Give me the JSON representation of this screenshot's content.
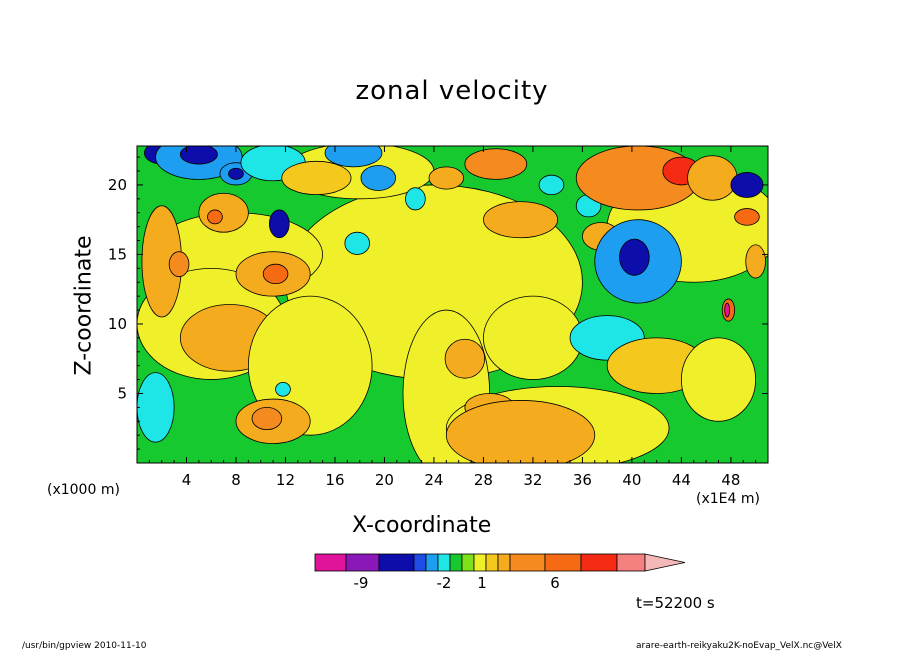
{
  "chart_data": {
    "type": "heatmap",
    "title": "zonal velocity",
    "xlabel": "X-coordinate",
    "ylabel": "Z-coordinate",
    "x_unit_left": "(x1000 m)",
    "x_unit_right": "(x1E4 m)",
    "xlim": [
      0,
      51
    ],
    "ylim": [
      0,
      22.8
    ],
    "x_ticks": [
      4,
      8,
      12,
      16,
      20,
      24,
      28,
      32,
      36,
      40,
      44,
      48
    ],
    "y_ticks": [
      5,
      10,
      15,
      20
    ],
    "colorbar": {
      "colors": [
        "#e0139b",
        "#8a17b8",
        "#0d0dab",
        "#1e4de6",
        "#1e9ef0",
        "#1ee6e6",
        "#16c92f",
        "#7fe11a",
        "#f0f02a",
        "#f5c81e",
        "#f5ab1e",
        "#f58a1e",
        "#f56a12",
        "#f52a12",
        "#f58080",
        "#f5b8b8"
      ],
      "labels": [
        {
          "text": "-9",
          "index": 2
        },
        {
          "text": "-2",
          "index": 7
        },
        {
          "text": "1",
          "index": 9
        },
        {
          "text": "6",
          "index": 13
        }
      ]
    },
    "blobs": [
      {
        "x": 2,
        "y": 22.3,
        "rx": 1.4,
        "ry": 0.8,
        "level": -5
      },
      {
        "x": 5,
        "y": 22.0,
        "rx": 3.5,
        "ry": 1.6,
        "level": -3
      },
      {
        "x": 5,
        "y": 22.2,
        "rx": 1.5,
        "ry": 0.7,
        "level": -6
      },
      {
        "x": 8,
        "y": 20.8,
        "rx": 1.3,
        "ry": 0.8,
        "level": -3
      },
      {
        "x": 8,
        "y": 20.8,
        "rx": 0.6,
        "ry": 0.4,
        "level": -6
      },
      {
        "x": 11,
        "y": 21.6,
        "rx": 2.6,
        "ry": 1.3,
        "level": -2
      },
      {
        "x": 11.5,
        "y": 17.2,
        "rx": 0.8,
        "ry": 1.0,
        "level": -5
      },
      {
        "x": 7,
        "y": 18.0,
        "rx": 2.0,
        "ry": 1.4,
        "level": 3
      },
      {
        "x": 6.3,
        "y": 17.7,
        "rx": 0.6,
        "ry": 0.5,
        "level": 6
      },
      {
        "x": 14.5,
        "y": 20.5,
        "rx": 2.8,
        "ry": 1.2,
        "level": 2
      },
      {
        "x": 17.5,
        "y": 22.3,
        "rx": 2.3,
        "ry": 1.0,
        "level": -3
      },
      {
        "x": 19.5,
        "y": 20.5,
        "rx": 1.4,
        "ry": 0.9,
        "level": -3
      },
      {
        "x": 17.8,
        "y": 15.8,
        "rx": 1.0,
        "ry": 0.8,
        "level": -2
      },
      {
        "x": 22.5,
        "y": 19.0,
        "rx": 0.8,
        "ry": 0.8,
        "level": -2
      },
      {
        "x": 25,
        "y": 20.5,
        "rx": 1.4,
        "ry": 0.8,
        "level": 3
      },
      {
        "x": 29,
        "y": 21.5,
        "rx": 2.5,
        "ry": 1.1,
        "level": 5
      },
      {
        "x": 31,
        "y": 17.5,
        "rx": 3.0,
        "ry": 1.3,
        "level": 3
      },
      {
        "x": 33.5,
        "y": 20.0,
        "rx": 1.0,
        "ry": 0.7,
        "level": -2
      },
      {
        "x": 36.5,
        "y": 18.5,
        "rx": 1.0,
        "ry": 0.8,
        "level": -2
      },
      {
        "x": 37.5,
        "y": 16.3,
        "rx": 1.5,
        "ry": 1.0,
        "level": 4
      },
      {
        "x": 40.5,
        "y": 20.5,
        "rx": 5.0,
        "ry": 2.3,
        "level": 5
      },
      {
        "x": 44,
        "y": 21.0,
        "rx": 1.5,
        "ry": 1.0,
        "level": 7
      },
      {
        "x": 40.5,
        "y": 14.5,
        "rx": 3.5,
        "ry": 3.0,
        "level": -3
      },
      {
        "x": 40.2,
        "y": 14.8,
        "rx": 1.2,
        "ry": 1.3,
        "level": -6
      },
      {
        "x": 46.5,
        "y": 20.5,
        "rx": 2.0,
        "ry": 1.6,
        "level": 3
      },
      {
        "x": 49.3,
        "y": 20.0,
        "rx": 1.3,
        "ry": 0.9,
        "level": -5
      },
      {
        "x": 49.3,
        "y": 17.7,
        "rx": 1.0,
        "ry": 0.6,
        "level": 6
      },
      {
        "x": 2,
        "y": 14.5,
        "rx": 1.6,
        "ry": 4.0,
        "level": 3
      },
      {
        "x": 3.4,
        "y": 14.3,
        "rx": 0.8,
        "ry": 0.9,
        "level": 5
      },
      {
        "x": 11,
        "y": 13.6,
        "rx": 3.0,
        "ry": 1.6,
        "level": 3
      },
      {
        "x": 11.2,
        "y": 13.6,
        "rx": 1.0,
        "ry": 0.7,
        "level": 6
      },
      {
        "x": 7.5,
        "y": 9.0,
        "rx": 4.0,
        "ry": 2.4,
        "level": 3
      },
      {
        "x": 1.5,
        "y": 4.0,
        "rx": 1.5,
        "ry": 2.5,
        "level": -2
      },
      {
        "x": 14,
        "y": 7.0,
        "rx": 5.0,
        "ry": 5.0,
        "level": 0
      },
      {
        "x": 11,
        "y": 3.0,
        "rx": 3.0,
        "ry": 1.6,
        "level": 3
      },
      {
        "x": 10.5,
        "y": 3.2,
        "rx": 1.2,
        "ry": 0.8,
        "level": 5
      },
      {
        "x": 11.8,
        "y": 5.3,
        "rx": 0.6,
        "ry": 0.5,
        "level": -2
      },
      {
        "x": 26.5,
        "y": 7.5,
        "rx": 1.6,
        "ry": 1.4,
        "level": 4
      },
      {
        "x": 28.5,
        "y": 4.0,
        "rx": 2.0,
        "ry": 1.0,
        "level": 3
      },
      {
        "x": 31,
        "y": 2.0,
        "rx": 6.0,
        "ry": 2.5,
        "level": 3
      },
      {
        "x": 32,
        "y": 9.0,
        "rx": 4.0,
        "ry": 3.0,
        "level": 0
      },
      {
        "x": 38,
        "y": 9.0,
        "rx": 3.0,
        "ry": 1.6,
        "level": -2
      },
      {
        "x": 42,
        "y": 7.0,
        "rx": 4.0,
        "ry": 2.0,
        "level": 2
      },
      {
        "x": 47,
        "y": 6.0,
        "rx": 3.0,
        "ry": 3.0,
        "level": 0
      },
      {
        "x": 47.8,
        "y": 11.0,
        "rx": 0.5,
        "ry": 0.8,
        "level": 6
      },
      {
        "x": 47.7,
        "y": 11.0,
        "rx": 0.2,
        "ry": 0.5,
        "level": -9
      },
      {
        "x": 50,
        "y": 14.5,
        "rx": 0.8,
        "ry": 1.2,
        "level": 4
      }
    ],
    "annotation": "t=52200 s"
  },
  "footer": {
    "left": "/usr/bin/gpview  2010-11-10",
    "right": "arare-earth-reikyaku2K-noEvap_VelX.nc@VelX"
  }
}
